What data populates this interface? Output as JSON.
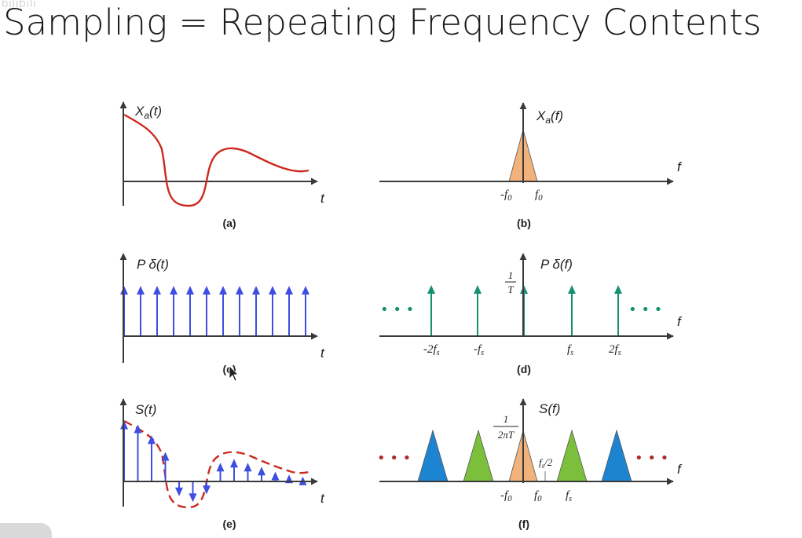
{
  "title": "Sampling = Repeating Frequency Contents",
  "watermark": "bilibili",
  "colors": {
    "signal": "#cc2a1e",
    "impulse_blue": "#3d4ee0",
    "impulse_green": "#159070",
    "spectrum_orange": "#f2b27b",
    "spectrum_green": "#7cbf3c",
    "spectrum_blue": "#1d84d2",
    "dots_red": "#b02a26"
  },
  "panels": {
    "a": {
      "caption": "(a)",
      "ylabel_main": "X",
      "ylabel_sub": "a",
      "ylabel_arg": "(t)",
      "xlabel": "t"
    },
    "b": {
      "caption": "(b)",
      "ylabel_main": "X",
      "ylabel_sub": "a",
      "ylabel_arg": "(f)",
      "xlabel": "f",
      "tick_neg": "-f",
      "tick_pos": "f",
      "tick_sub": "0"
    },
    "c": {
      "caption": "(c)",
      "ylabel": "P δ(t)",
      "xlabel": "t",
      "impulse_count": 12
    },
    "d": {
      "caption": "(d)",
      "ylabel": "P δ(f)",
      "xlabel": "f",
      "height_num": "1",
      "height_den": "T",
      "ticks": [
        {
          "main": "-2f",
          "sub": "s"
        },
        {
          "main": "-f",
          "sub": "s"
        },
        {
          "main": "f",
          "sub": "s"
        },
        {
          "main": "2f",
          "sub": "s"
        }
      ],
      "dots": "• • •"
    },
    "e": {
      "caption": "(e)",
      "ylabel": "S(t)",
      "xlabel": "t",
      "samples": [
        6.2,
        5.8,
        4.7,
        3.0,
        -1.5,
        -2.1,
        -1.3,
        1.9,
        2.3,
        1.9,
        1.5,
        1.0,
        0.7,
        0.5
      ]
    },
    "f": {
      "caption": "(f)",
      "ylabel": "S(f)",
      "xlabel": "f",
      "height_num": "1",
      "height_den": "2πT",
      "half_label": "f",
      "half_sub": "s",
      "half_rest": "/2",
      "tick_neg": "-f",
      "tick_pos": "f",
      "tick_zero_sub": "0",
      "tick_fs": "f",
      "tick_fs_sub": "s",
      "dots": "• • •"
    }
  }
}
